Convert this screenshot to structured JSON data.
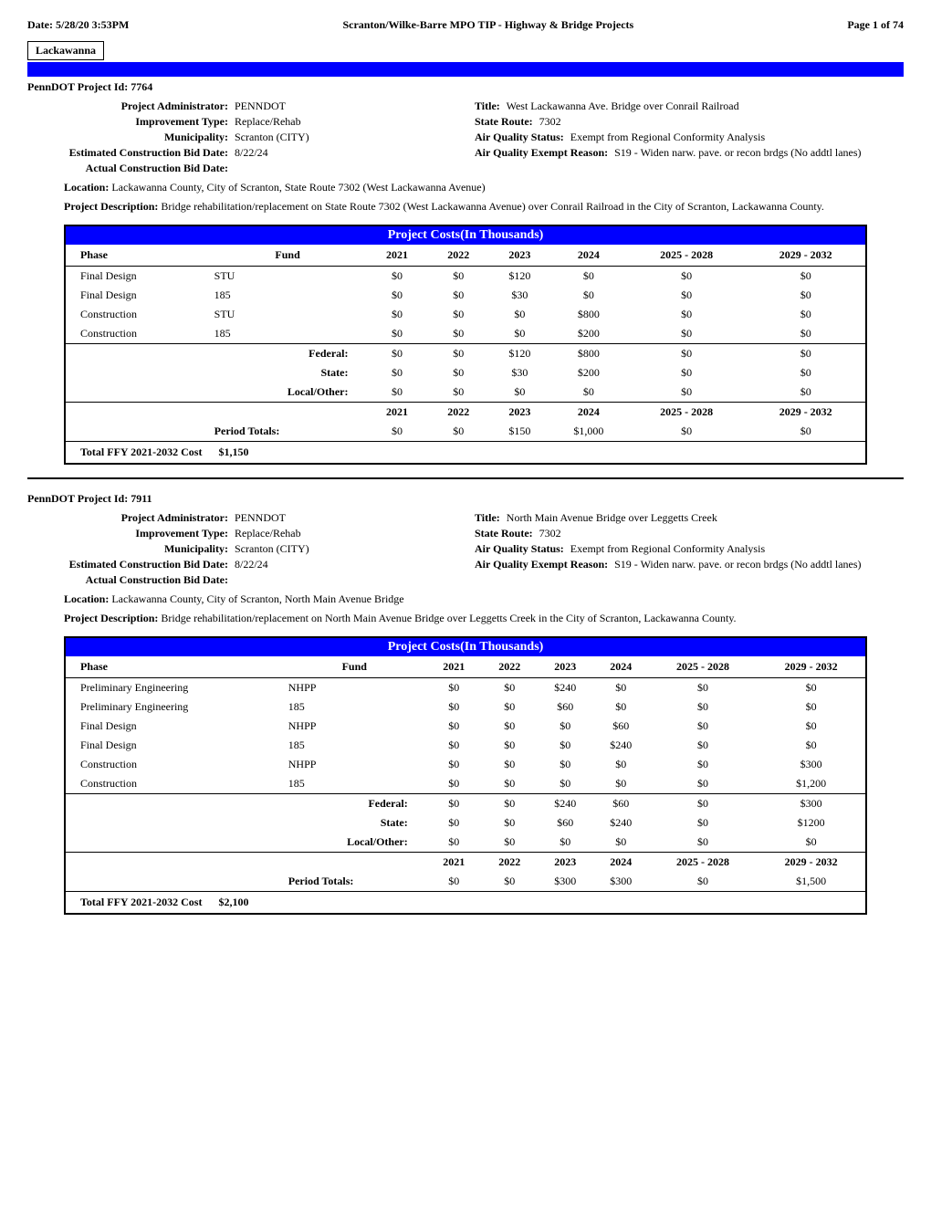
{
  "header": {
    "date": "Date: 5/28/20 3:53PM",
    "title": "Scranton/Wilke-Barre MPO TIP - Highway & Bridge Projects",
    "page": "Page 1 of 74"
  },
  "county": "Lackawanna",
  "projects": [
    {
      "id_label": "PennDOT Project Id:",
      "id": "7764",
      "admin_label": "Project Administrator:",
      "admin": "PENNDOT",
      "title_label": "Title:",
      "title": "West Lackawanna Ave. Bridge over Conrail Railroad",
      "imp_label": "Improvement Type:",
      "imp": "Replace/Rehab",
      "route_label": "State Route:",
      "route": "7302",
      "muni_label": "Municipality:",
      "muni": "Scranton (CITY)",
      "aqs_label": "Air Quality Status:",
      "aqs": "Exempt from Regional Conformity Analysis",
      "est_label": "Estimated Construction Bid Date:",
      "est": "8/22/24",
      "aqer_label": "Air Quality Exempt Reason:",
      "aqer": "S19  -  Widen narw. pave. or recon brdgs (No addtl lanes)",
      "actual_label": "Actual Construction Bid Date:",
      "actual": "",
      "location_label": "Location:",
      "location": "Lackawanna County, City of Scranton, State Route 7302 (West Lackawanna Avenue)",
      "desc_label": "Project Description:",
      "desc": "Bridge rehabilitation/replacement on State Route 7302 (West Lackawanna Avenue) over Conrail Railroad in the City of Scranton, Lackawanna County.",
      "table": {
        "title": "Project Costs(In Thousands)",
        "columns": [
          "Phase",
          "Fund",
          "2021",
          "2022",
          "2023",
          "2024",
          "2025 - 2028",
          "2029 - 2032"
        ],
        "rows": [
          [
            "Final Design",
            "STU",
            "$0",
            "$0",
            "$120",
            "$0",
            "$0",
            "$0"
          ],
          [
            "Final Design",
            "185",
            "$0",
            "$0",
            "$30",
            "$0",
            "$0",
            "$0"
          ],
          [
            "Construction",
            "STU",
            "$0",
            "$0",
            "$0",
            "$800",
            "$0",
            "$0"
          ],
          [
            "Construction",
            "185",
            "$0",
            "$0",
            "$0",
            "$200",
            "$0",
            "$0"
          ]
        ],
        "subtotals": [
          [
            "",
            "Federal:",
            "$0",
            "$0",
            "$120",
            "$800",
            "$0",
            "$0"
          ],
          [
            "",
            "State:",
            "$0",
            "$0",
            "$30",
            "$200",
            "$0",
            "$0"
          ],
          [
            "",
            "Local/Other:",
            "$0",
            "$0",
            "$0",
            "$0",
            "$0",
            "$0"
          ]
        ],
        "year_row": [
          "",
          "",
          "2021",
          "2022",
          "2023",
          "2024",
          "2025 - 2028",
          "2029 - 2032"
        ],
        "period": [
          "",
          "Period Totals:",
          "$0",
          "$0",
          "$150",
          "$1,000",
          "$0",
          "$0"
        ],
        "total_label": "Total FFY 2021-2032 Cost",
        "total": "$1,150"
      }
    },
    {
      "id_label": "PennDOT Project Id:",
      "id": "7911",
      "admin_label": "Project Administrator:",
      "admin": "PENNDOT",
      "title_label": "Title:",
      "title": "North Main Avenue Bridge over Leggetts Creek",
      "imp_label": "Improvement Type:",
      "imp": "Replace/Rehab",
      "route_label": "State Route:",
      "route": "7302",
      "muni_label": "Municipality:",
      "muni": "Scranton (CITY)",
      "aqs_label": "Air Quality Status:",
      "aqs": "Exempt from Regional Conformity Analysis",
      "est_label": "Estimated Construction Bid Date:",
      "est": "8/22/24",
      "aqer_label": "Air Quality Exempt Reason:",
      "aqer": "S19  -  Widen narw. pave. or recon brdgs (No addtl lanes)",
      "actual_label": "Actual Construction Bid Date:",
      "actual": "",
      "location_label": "Location:",
      "location": "Lackawanna County, City of Scranton, North Main Avenue Bridge",
      "desc_label": "Project Description:",
      "desc": "Bridge rehabilitation/replacement on North Main Avenue Bridge over Leggetts Creek in the City of Scranton, Lackawanna County.",
      "table": {
        "title": "Project Costs(In Thousands)",
        "columns": [
          "Phase",
          "Fund",
          "2021",
          "2022",
          "2023",
          "2024",
          "2025 - 2028",
          "2029 - 2032"
        ],
        "rows": [
          [
            "Preliminary Engineering",
            "NHPP",
            "$0",
            "$0",
            "$240",
            "$0",
            "$0",
            "$0"
          ],
          [
            "Preliminary Engineering",
            "185",
            "$0",
            "$0",
            "$60",
            "$0",
            "$0",
            "$0"
          ],
          [
            "Final Design",
            "NHPP",
            "$0",
            "$0",
            "$0",
            "$60",
            "$0",
            "$0"
          ],
          [
            "Final Design",
            "185",
            "$0",
            "$0",
            "$0",
            "$240",
            "$0",
            "$0"
          ],
          [
            "Construction",
            "NHPP",
            "$0",
            "$0",
            "$0",
            "$0",
            "$0",
            "$300"
          ],
          [
            "Construction",
            "185",
            "$0",
            "$0",
            "$0",
            "$0",
            "$0",
            "$1,200"
          ]
        ],
        "subtotals": [
          [
            "",
            "Federal:",
            "$0",
            "$0",
            "$240",
            "$60",
            "$0",
            "$300"
          ],
          [
            "",
            "State:",
            "$0",
            "$0",
            "$60",
            "$240",
            "$0",
            "$1200"
          ],
          [
            "",
            "Local/Other:",
            "$0",
            "$0",
            "$0",
            "$0",
            "$0",
            "$0"
          ]
        ],
        "year_row": [
          "",
          "",
          "2021",
          "2022",
          "2023",
          "2024",
          "2025 - 2028",
          "2029 - 2032"
        ],
        "period": [
          "",
          "Period Totals:",
          "$0",
          "$0",
          "$300",
          "$300",
          "$0",
          "$1,500"
        ],
        "total_label": "Total FFY 2021-2032 Cost",
        "total": "$2,100"
      }
    }
  ]
}
